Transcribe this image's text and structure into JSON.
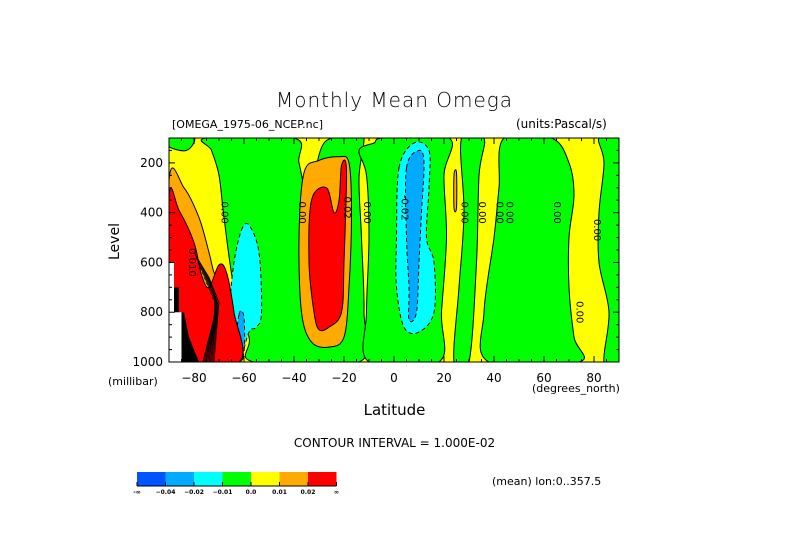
{
  "chart_data": {
    "type": "heatmap",
    "subtype": "filled-contour",
    "title": "Monthly Mean Omega",
    "file_label": "[OMEGA_1975-06_NCEP.nc]",
    "units_label": "(units:Pascal/s)",
    "xlabel": "Latitude",
    "x_units": "(degrees_north)",
    "ylabel": "Level",
    "y_units": "(millibar)",
    "xlim": [
      -90,
      90
    ],
    "ylim": [
      100,
      1000
    ],
    "y_inverted": true,
    "x_ticks": [
      -80,
      -60,
      -40,
      -20,
      0,
      20,
      40,
      60,
      80
    ],
    "x_tick_labels": [
      "−80",
      "−60",
      "−40",
      "−20",
      "0",
      "20",
      "40",
      "60",
      "80"
    ],
    "y_ticks": [
      200,
      400,
      600,
      800,
      1000
    ],
    "y_tick_labels": [
      "200",
      "400",
      "600",
      "800",
      "1000"
    ],
    "contour_interval_label": "CONTOUR INTERVAL = 1.000E-02",
    "contour_interval": 0.01,
    "mean_label": "(mean) lon:0..357.5",
    "colorbar": {
      "bins": [
        {
          "label": "<-0.04",
          "color": "#0055ff"
        },
        {
          "label": "-0.04..-0.02",
          "color": "#00aaff"
        },
        {
          "label": "-0.02..-0.01",
          "color": "#00ffff"
        },
        {
          "label": "-0.01..0.0",
          "color": "#00ff00"
        },
        {
          "label": "0.0..0.01",
          "color": "#ffff00"
        },
        {
          "label": "0.01..0.02",
          "color": "#ffaa00"
        },
        {
          "label": ">0.02",
          "color": "#ff0000"
        }
      ],
      "tick_labels": [
        "-∞",
        "−0.04",
        "−0.02",
        "−0.01",
        "0.0",
        "0.01",
        "0.02",
        "∞"
      ]
    },
    "background_color": "#ffff00",
    "regions": [
      {
        "name": "green-sp-top",
        "color": "#00ff00",
        "pts": [
          [
            -90,
            100
          ],
          [
            -80,
            100
          ],
          [
            -83,
            150
          ],
          [
            -90,
            135
          ]
        ]
      },
      {
        "name": "green-band-60s",
        "color": "#00ff00",
        "pts": [
          [
            -75,
            100
          ],
          [
            -40,
            100
          ],
          [
            -38,
            200
          ],
          [
            -34,
            330
          ],
          [
            -28,
            120
          ],
          [
            -16,
            100
          ],
          [
            -12,
            100
          ],
          [
            -14,
            260
          ],
          [
            -13,
            500
          ],
          [
            -12,
            800
          ],
          [
            -14,
            1000
          ],
          [
            -56,
            1000
          ],
          [
            -58,
            900
          ],
          [
            -64,
            700
          ],
          [
            -68,
            420
          ],
          [
            -70,
            250
          ],
          [
            -73,
            150
          ]
        ]
      },
      {
        "name": "green-tropics",
        "color": "#00ff00",
        "pts": [
          [
            -14,
            150
          ],
          [
            -8,
            120
          ],
          [
            -4,
            100
          ],
          [
            22,
            100
          ],
          [
            20,
            250
          ],
          [
            21,
            500
          ],
          [
            19,
            800
          ],
          [
            18,
            1000
          ],
          [
            -10,
            1000
          ],
          [
            -11,
            800
          ],
          [
            -10,
            500
          ],
          [
            -11,
            250
          ]
        ]
      },
      {
        "name": "green-30n",
        "color": "#00ff00",
        "pts": [
          [
            27,
            100
          ],
          [
            36,
            100
          ],
          [
            34,
            250
          ],
          [
            33,
            600
          ],
          [
            30,
            1000
          ],
          [
            24,
            1000
          ],
          [
            26,
            700
          ],
          [
            28,
            400
          ]
        ]
      },
      {
        "name": "green-40n-70n",
        "color": "#00ff00",
        "pts": [
          [
            44,
            100
          ],
          [
            63,
            100
          ],
          [
            70,
            200
          ],
          [
            72,
            330
          ],
          [
            70,
            500
          ],
          [
            70,
            700
          ],
          [
            72,
            900
          ],
          [
            74,
            1000
          ],
          [
            38,
            1000
          ],
          [
            36,
            800
          ],
          [
            40,
            500
          ],
          [
            42,
            300
          ]
        ]
      },
      {
        "name": "green-80n",
        "color": "#00ff00",
        "pts": [
          [
            82,
            100
          ],
          [
            90,
            100
          ],
          [
            90,
            1000
          ],
          [
            84,
            1000
          ],
          [
            86,
            800
          ],
          [
            82,
            600
          ],
          [
            82,
            400
          ],
          [
            84,
            200
          ]
        ]
      },
      {
        "name": "cyan-60s",
        "color": "#00ffff",
        "pts": [
          [
            -61,
            470
          ],
          [
            -58,
            450
          ],
          [
            -54,
            560
          ],
          [
            -53,
            800
          ],
          [
            -55,
            860
          ],
          [
            -58,
            880
          ],
          [
            -62,
            1000
          ],
          [
            -67,
            1000
          ],
          [
            -66,
            800
          ],
          [
            -64,
            600
          ]
        ]
      },
      {
        "name": "blue-60s",
        "color": "#00aaff",
        "pts": [
          [
            -62,
            810
          ],
          [
            -60,
            820
          ],
          [
            -60,
            960
          ],
          [
            -62,
            1000
          ],
          [
            -64,
            1000
          ]
        ]
      },
      {
        "name": "cyan-equator",
        "color": "#00ffff",
        "pts": [
          [
            2,
            220
          ],
          [
            8,
            120
          ],
          [
            14,
            150
          ],
          [
            14,
            300
          ],
          [
            13,
            500
          ],
          [
            16,
            600
          ],
          [
            16,
            800
          ],
          [
            10,
            880
          ],
          [
            4,
            860
          ],
          [
            1,
            700
          ],
          [
            1,
            500
          ]
        ]
      },
      {
        "name": "blue-equator",
        "color": "#00aaff",
        "pts": [
          [
            5,
            220
          ],
          [
            10,
            150
          ],
          [
            12,
            200
          ],
          [
            11,
            400
          ],
          [
            10,
            600
          ],
          [
            9,
            800
          ],
          [
            6,
            830
          ],
          [
            6,
            700
          ],
          [
            5,
            500
          ]
        ]
      },
      {
        "name": "orange-sp",
        "color": "#ffaa00",
        "pts": [
          [
            -90,
            270
          ],
          [
            -84,
            300
          ],
          [
            -78,
            420
          ],
          [
            -74,
            560
          ],
          [
            -72,
            640
          ],
          [
            -70,
            660
          ],
          [
            -66,
            700
          ],
          [
            -64,
            900
          ],
          [
            -62,
            1000
          ],
          [
            -90,
            1000
          ]
        ]
      },
      {
        "name": "red-sp",
        "color": "#ff0000",
        "pts": [
          [
            -90,
            340
          ],
          [
            -86,
            390
          ],
          [
            -80,
            520
          ],
          [
            -77,
            650
          ],
          [
            -74,
            700
          ],
          [
            -70,
            610
          ],
          [
            -67,
            640
          ],
          [
            -64,
            800
          ],
          [
            -62,
            1000
          ],
          [
            -90,
            1000
          ]
        ]
      },
      {
        "name": "orange-20s",
        "color": "#ffaa00",
        "pts": [
          [
            -36,
            240
          ],
          [
            -30,
            190
          ],
          [
            -22,
            175
          ],
          [
            -18,
            200
          ],
          [
            -17,
            400
          ],
          [
            -18,
            700
          ],
          [
            -20,
            900
          ],
          [
            -26,
            940
          ],
          [
            -33,
            920
          ],
          [
            -37,
            800
          ],
          [
            -38,
            500
          ]
        ]
      },
      {
        "name": "red-20s",
        "color": "#ff0000",
        "pts": [
          [
            -33,
            350
          ],
          [
            -27,
            300
          ],
          [
            -24,
            400
          ],
          [
            -22,
            350
          ],
          [
            -21,
            210
          ],
          [
            -19,
            230
          ],
          [
            -20,
            600
          ],
          [
            -21,
            800
          ],
          [
            -26,
            860
          ],
          [
            -30,
            870
          ],
          [
            -32,
            800
          ],
          [
            -34,
            600
          ]
        ]
      },
      {
        "name": "orange-sliver-20n",
        "color": "#ffaa00",
        "pts": [
          [
            24,
            250
          ],
          [
            25,
            240
          ],
          [
            25,
            380
          ],
          [
            24,
            380
          ]
        ]
      }
    ],
    "missing_regions": [
      {
        "color": "#ffffff",
        "pts": [
          [
            -90,
            600
          ],
          [
            -88,
            600
          ],
          [
            -88,
            700
          ],
          [
            -86,
            700
          ],
          [
            -86,
            800
          ],
          [
            -85,
            800
          ],
          [
            -85,
            1000
          ],
          [
            -90,
            1000
          ]
        ]
      },
      {
        "color": "#000000",
        "pts": [
          [
            -88,
            700
          ],
          [
            -86,
            700
          ],
          [
            -86,
            800
          ],
          [
            -84,
            800
          ],
          [
            -82,
            900
          ],
          [
            -78,
            1000
          ],
          [
            -85,
            1000
          ],
          [
            -85,
            800
          ],
          [
            -88,
            800
          ]
        ]
      }
    ],
    "contour_labels": [
      {
        "text": "0.00",
        "lat": -69,
        "lev": 400
      },
      {
        "text": "0.00",
        "lat": -38,
        "lev": 400
      },
      {
        "text": "0.02",
        "lat": -20,
        "lev": 380
      },
      {
        "text": "0.00",
        "lat": -12,
        "lev": 400
      },
      {
        "text": "-0.02",
        "lat": 3,
        "lev": 380
      },
      {
        "text": "0.00",
        "lat": 27,
        "lev": 400
      },
      {
        "text": "0.00",
        "lat": 34,
        "lev": 400
      },
      {
        "text": "0.00",
        "lat": 41,
        "lev": 400
      },
      {
        "text": "0.00",
        "lat": 45,
        "lev": 400
      },
      {
        "text": "0.00",
        "lat": 64,
        "lev": 400
      },
      {
        "text": "0.00",
        "lat": 80,
        "lev": 470
      },
      {
        "text": "0.00",
        "lat": 73,
        "lev": 800
      },
      {
        "text": "0.010",
        "lat": -82,
        "lev": 600
      }
    ]
  }
}
